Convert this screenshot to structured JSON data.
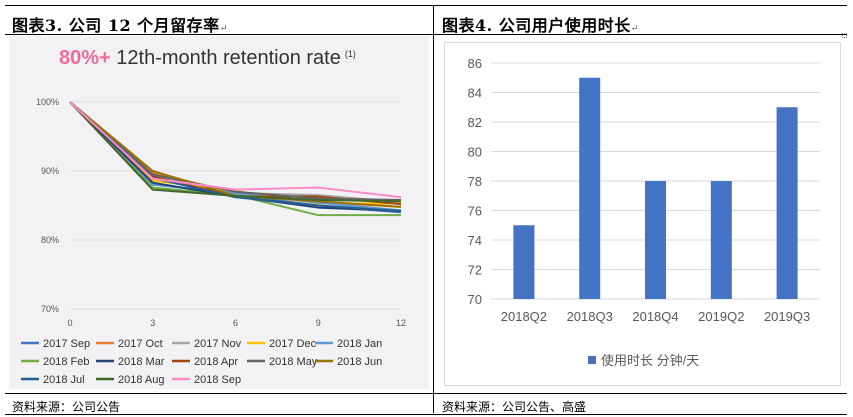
{
  "left": {
    "title": "图表3.  公司 12 个月留存率",
    "mark": "↵",
    "source": "资料来源：公司公告",
    "chart_data": {
      "type": "line",
      "headline_pct": "80%+",
      "headline_text": " 12th-month retention rate",
      "headline_note": "(1)",
      "x": [
        0,
        3,
        6,
        9,
        12
      ],
      "x_ticks": [
        "0",
        "3",
        "6",
        "9",
        "12"
      ],
      "y_ticks": [
        "70%",
        "80%",
        "90%",
        "100%"
      ],
      "ylim": [
        70,
        100
      ],
      "series": [
        {
          "name": "2017 Sep",
          "color": "#4472c4",
          "values": [
            100,
            89.5,
            86.5,
            85.0,
            84.0
          ]
        },
        {
          "name": "2017 Oct",
          "color": "#ed7d31",
          "values": [
            100,
            89.8,
            86.8,
            85.5,
            84.8
          ]
        },
        {
          "name": "2017 Nov",
          "color": "#a5a5a5",
          "values": [
            100,
            89.2,
            86.8,
            86.5,
            85.5
          ]
        },
        {
          "name": "2017 Dec",
          "color": "#ffc000",
          "values": [
            100,
            88.6,
            87.1,
            85.3,
            85.3
          ]
        },
        {
          "name": "2018 Jan",
          "color": "#5b9bd5",
          "values": [
            100,
            88.0,
            86.8,
            85.4,
            84.3
          ]
        },
        {
          "name": "2018 Feb",
          "color": "#70ad47",
          "values": [
            100,
            87.6,
            86.5,
            83.6,
            83.6
          ]
        },
        {
          "name": "2018 Mar",
          "color": "#264478",
          "values": [
            100,
            88.3,
            86.3,
            84.7,
            84.2
          ]
        },
        {
          "name": "2018 Apr",
          "color": "#9e480e",
          "values": [
            100,
            89.2,
            86.3,
            86.3,
            85.2
          ]
        },
        {
          "name": "2018 May",
          "color": "#636363",
          "values": [
            100,
            89.5,
            87.0,
            86.0,
            85.8
          ]
        },
        {
          "name": "2018 Jun",
          "color": "#997300",
          "values": [
            100,
            90.0,
            86.4,
            85.6,
            84.8
          ]
        },
        {
          "name": "2018 Jul",
          "color": "#255e91",
          "values": [
            100,
            89.0,
            86.2,
            85.0,
            84.2
          ]
        },
        {
          "name": "2018 Aug",
          "color": "#43682b",
          "values": [
            100,
            87.3,
            86.4,
            85.8,
            85.6
          ]
        },
        {
          "name": "2018 Sep",
          "color": "#ff88c8",
          "values": [
            100,
            88.9,
            87.3,
            87.6,
            86.2
          ]
        }
      ]
    }
  },
  "right": {
    "title": "图表4.  公司用户使用时长",
    "mark": "↵",
    "source": "资料来源：公司公告、高盛",
    "chart_data": {
      "type": "bar",
      "categories": [
        "2018Q2",
        "2018Q3",
        "2018Q4",
        "2019Q2",
        "2019Q3"
      ],
      "series": [
        {
          "name": "使用时长 分钟/天",
          "color": "#4472c4",
          "values": [
            75,
            85,
            78,
            78,
            83
          ]
        }
      ],
      "ylim": [
        70,
        86
      ],
      "y_ticks": [
        "70",
        "72",
        "74",
        "76",
        "78",
        "80",
        "82",
        "84",
        "86"
      ]
    }
  }
}
